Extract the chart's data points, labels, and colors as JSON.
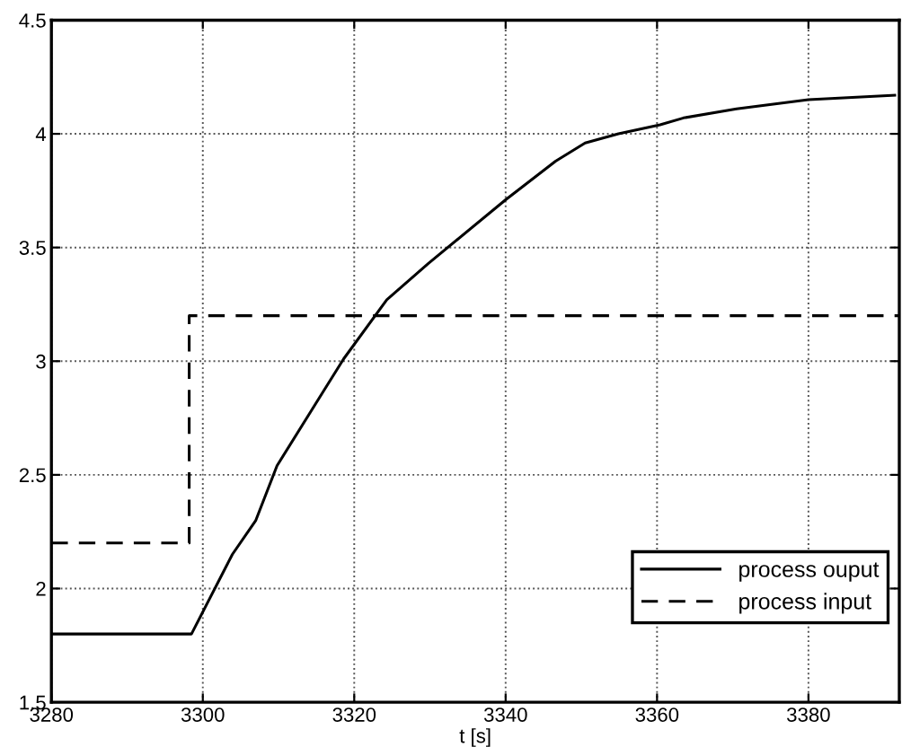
{
  "chart_data": {
    "type": "line",
    "xlabel": "t [s]",
    "xlim": [
      3280,
      3392
    ],
    "ylim": [
      1.5,
      4.5
    ],
    "xticks": [
      3280,
      3300,
      3320,
      3340,
      3360,
      3380
    ],
    "yticks": [
      1.5,
      2,
      2.5,
      3,
      3.5,
      4,
      4.5
    ],
    "grid": true,
    "legend": "bottom right",
    "series": [
      {
        "name": "process ouput",
        "color": "#000000",
        "line_style": "solid",
        "x": [
          3280,
          3298.5,
          3303.9,
          3307.0,
          3309.8,
          3315.6,
          3318.6,
          3324.3,
          3329.8,
          3340.0,
          3346.6,
          3350.5,
          3354.9,
          3360.4,
          3363.5,
          3370.5,
          3380.0,
          3391.4
        ],
        "values": [
          1.8,
          1.8,
          2.15,
          2.3,
          2.54,
          2.85,
          3.01,
          3.27,
          3.43,
          3.71,
          3.88,
          3.96,
          4.0,
          4.04,
          4.07,
          4.11,
          4.15,
          4.17
        ]
      },
      {
        "name": "process input",
        "color": "#000000",
        "line_style": "dashed",
        "x": [
          3280,
          3298.2,
          3298.2,
          3392
        ],
        "values": [
          2.2,
          2.2,
          3.2,
          3.2
        ]
      }
    ]
  }
}
